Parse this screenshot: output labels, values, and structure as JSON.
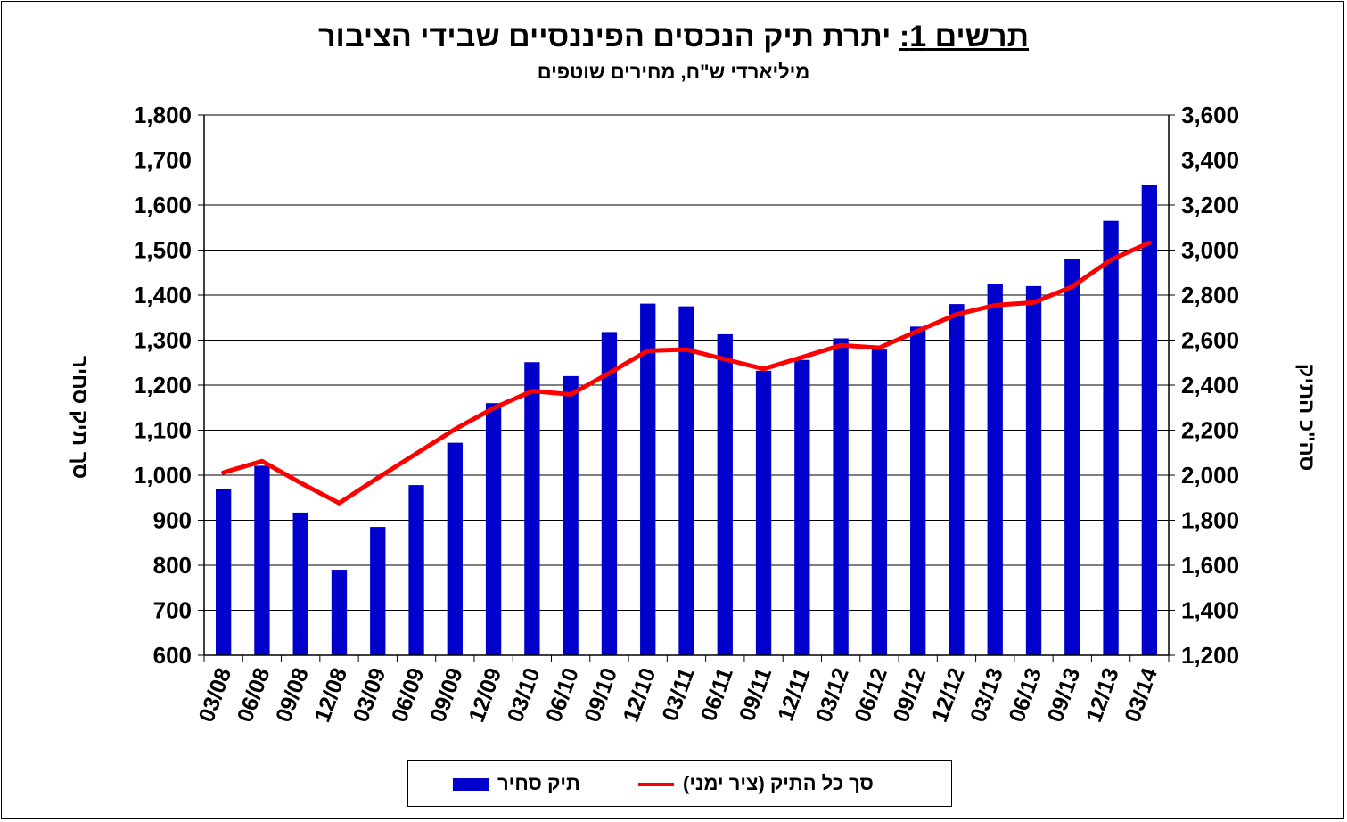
{
  "chart_data": {
    "type": "bar+line",
    "title_prefix": "תרשים 1:",
    "title_main": "יתרת תיק הנכסים הפיננסיים שבידי הציבור",
    "subtitle": "מיליארדי ש\"ח, מחירים שוטפים",
    "ylabel_left": "סך תיק סחיר",
    "ylabel_right": "סה\"כ התיק",
    "categories": [
      "03/08",
      "06/08",
      "09/08",
      "12/08",
      "03/09",
      "06/09",
      "09/09",
      "12/09",
      "03/10",
      "06/10",
      "09/10",
      "12/10",
      "03/11",
      "06/11",
      "09/11",
      "12/11",
      "03/12",
      "06/12",
      "09/12",
      "12/12",
      "03/13",
      "06/13",
      "09/13",
      "12/13",
      "03/14"
    ],
    "left_axis": {
      "min": 600,
      "max": 1800,
      "step": 100,
      "ticks": [
        "600",
        "700",
        "800",
        "900",
        "1,000",
        "1,100",
        "1,200",
        "1,300",
        "1,400",
        "1,500",
        "1,600",
        "1,700",
        "1,800"
      ]
    },
    "right_axis": {
      "min": 1200,
      "max": 3600,
      "step": 200,
      "ticks": [
        "1,200",
        "1,400",
        "1,600",
        "1,800",
        "2,000",
        "2,200",
        "2,400",
        "2,600",
        "2,800",
        "3,000",
        "3,200",
        "3,400",
        "3,600"
      ]
    },
    "grid": "horizontal",
    "series": [
      {
        "name": "תיק סחיר",
        "type": "bar",
        "axis": "left",
        "color": "#0000CC",
        "values": [
          970,
          1021,
          917,
          790,
          885,
          978,
          1072,
          1160,
          1251,
          1220,
          1318,
          1381,
          1375,
          1313,
          1232,
          1256,
          1304,
          1279,
          1330,
          1380,
          1424,
          1420,
          1481,
          1565,
          1645
        ]
      },
      {
        "name": "סך כל התיק (ציר ימני)",
        "type": "line",
        "axis": "right",
        "color": "#FF0000",
        "values": [
          2012,
          2062,
          1966,
          1876,
          1988,
          2096,
          2204,
          2298,
          2374,
          2359,
          2454,
          2553,
          2558,
          2515,
          2472,
          2524,
          2577,
          2566,
          2641,
          2714,
          2755,
          2767,
          2838,
          2957,
          3033
        ]
      }
    ],
    "legend_position": "bottom"
  }
}
